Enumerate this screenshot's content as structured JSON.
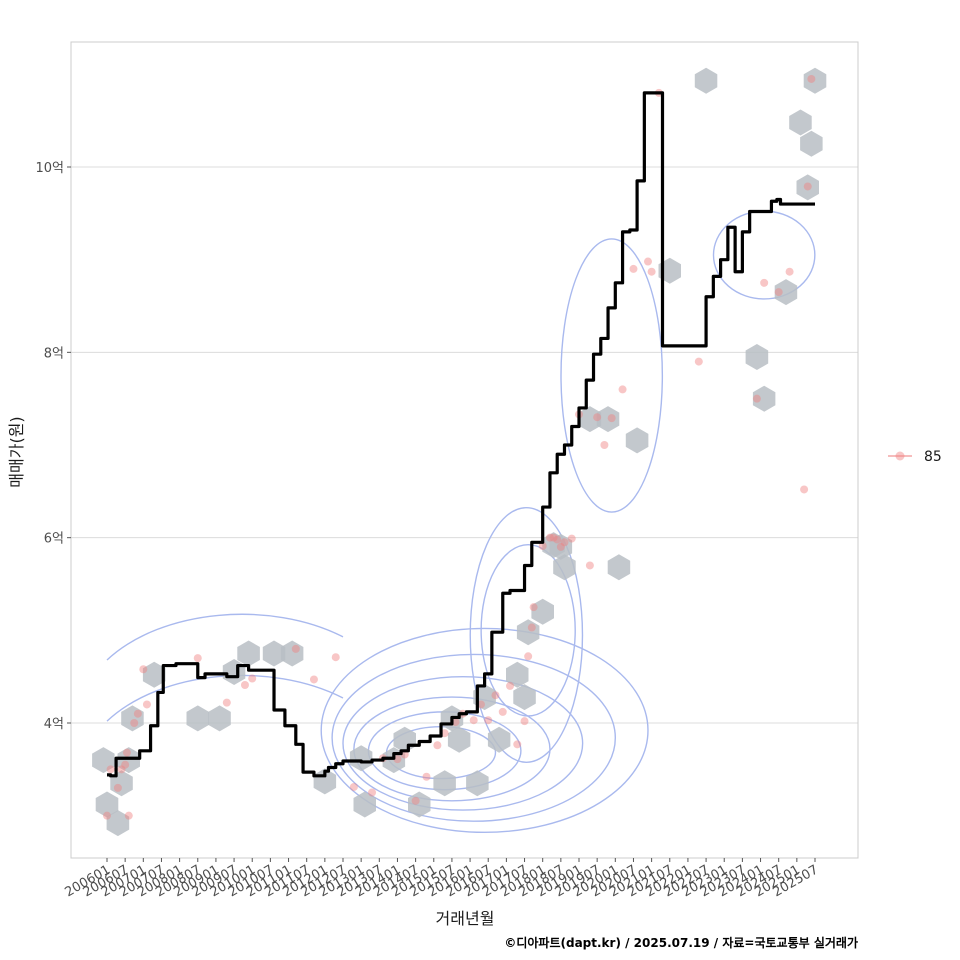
{
  "chart_data": {
    "type": "line",
    "xlabel": "거래년월",
    "ylabel": "매매가(원)",
    "caption": "©디아파트(dapt.kr) / 2025.07.19 / 자료=국토교통부 실거래가",
    "legend": {
      "position": "right",
      "entries": [
        "85"
      ]
    },
    "grid": true,
    "xlim": [
      2005.75,
      2026.9
    ],
    "ylim": [
      2.65,
      11.45
    ],
    "x_ticks": [
      "200601",
      "200607",
      "200701",
      "200707",
      "200801",
      "200807",
      "200901",
      "200907",
      "201001",
      "201007",
      "201101",
      "201107",
      "201201",
      "201207",
      "201301",
      "201307",
      "201401",
      "201407",
      "201501",
      "201507",
      "201601",
      "201607",
      "201701",
      "201707",
      "201801",
      "201807",
      "201901",
      "201907",
      "202001",
      "202007",
      "202101",
      "202107",
      "202201",
      "202207",
      "202301",
      "202307",
      "202401",
      "202407",
      "202501",
      "202507"
    ],
    "y_ticks": [
      {
        "value": 4,
        "label": "4억"
      },
      {
        "value": 6,
        "label": "6억"
      },
      {
        "value": 8,
        "label": "8억"
      },
      {
        "value": 10,
        "label": "10억"
      }
    ],
    "colors": {
      "line": "#000000",
      "points": "#f08080",
      "hexbin": "#b8bec4",
      "hexbin_highlight": "#c9def0",
      "contour": "#a9b9ee",
      "grid": "#dcdcdc",
      "panel_border": "#cccccc"
    },
    "series": [
      {
        "name": "85",
        "kind": "moving_average_line",
        "x": [
          2006.0,
          2006.1,
          2006.25,
          2006.5,
          2006.75,
          2006.9,
          2007.2,
          2007.4,
          2007.55,
          2007.75,
          2007.9,
          2008.1,
          2008.5,
          2008.7,
          2008.9,
          2009.1,
          2009.3,
          2009.6,
          2009.9,
          2010.2,
          2010.4,
          2010.6,
          2010.9,
          2011.2,
          2011.4,
          2011.5,
          2011.7,
          2012.0,
          2012.1,
          2012.3,
          2012.5,
          2012.75,
          2013.0,
          2013.3,
          2013.6,
          2013.9,
          2014.1,
          2014.3,
          2014.6,
          2014.9,
          2015.2,
          2015.5,
          2015.7,
          2015.9,
          2016.2,
          2016.4,
          2016.6,
          2016.9,
          2017.1,
          2017.3,
          2017.5,
          2017.7,
          2018.0,
          2018.2,
          2018.4,
          2018.6,
          2018.8,
          2019.0,
          2019.2,
          2019.4,
          2019.6,
          2019.8,
          2020.0,
          2020.2,
          2020.4,
          2020.6,
          2020.8,
          2021.0,
          2021.3,
          2021.6,
          2021.8,
          2022.1,
          2022.3,
          2022.5,
          2022.7,
          2022.9,
          2023.1,
          2023.3,
          2023.5,
          2023.7,
          2023.9,
          2024.1,
          2024.3,
          2024.45,
          2024.55,
          2024.7,
          2024.9,
          2025.2,
          2025.4,
          2025.5
        ],
        "y": [
          3.44,
          3.43,
          3.62,
          3.62,
          3.62,
          3.7,
          3.97,
          4.33,
          4.62,
          4.62,
          4.64,
          4.64,
          4.49,
          4.53,
          4.53,
          4.53,
          4.5,
          4.62,
          4.57,
          4.57,
          4.57,
          4.14,
          3.97,
          3.77,
          3.47,
          3.47,
          3.43,
          3.48,
          3.52,
          3.56,
          3.59,
          3.59,
          3.58,
          3.6,
          3.62,
          3.67,
          3.7,
          3.76,
          3.8,
          3.86,
          3.99,
          4.06,
          4.1,
          4.12,
          4.4,
          4.53,
          4.98,
          5.4,
          5.43,
          5.43,
          5.7,
          5.95,
          6.33,
          6.7,
          6.9,
          7.0,
          7.2,
          7.4,
          7.7,
          7.98,
          8.15,
          8.48,
          8.75,
          9.3,
          9.32,
          9.85,
          10.8,
          10.8,
          8.07,
          8.07,
          8.07,
          8.07,
          8.07,
          8.6,
          8.82,
          9.0,
          9.35,
          8.87,
          9.3,
          9.52,
          9.52,
          9.52,
          9.63,
          9.65,
          9.6,
          9.6,
          9.6,
          9.6,
          9.6,
          9.6
        ]
      },
      {
        "name": "85",
        "kind": "transactions",
        "x": [
          2006.0,
          2006.1,
          2006.3,
          2006.4,
          2006.5,
          2006.55,
          2006.6,
          2006.75,
          2006.85,
          2007.0,
          2007.1,
          2008.5,
          2009.3,
          2009.8,
          2010.0,
          2011.2,
          2011.7,
          2012.3,
          2012.8,
          2013.3,
          2013.6,
          2014.0,
          2014.2,
          2014.5,
          2014.8,
          2015.1,
          2015.3,
          2015.6,
          2015.8,
          2016.1,
          2016.3,
          2016.5,
          2016.7,
          2016.9,
          2017.1,
          2017.3,
          2017.5,
          2017.6,
          2017.7,
          2017.75,
          2018.0,
          2018.2,
          2018.3,
          2018.4,
          2018.5,
          2018.6,
          2018.8,
          2019.0,
          2019.3,
          2019.5,
          2019.7,
          2019.9,
          2020.2,
          2020.5,
          2020.9,
          2021.0,
          2021.2,
          2022.3,
          2023.9,
          2024.1,
          2024.5,
          2024.8,
          2025.2,
          2025.3,
          2025.4
        ],
        "y": [
          3.0,
          3.5,
          3.3,
          3.5,
          3.55,
          3.68,
          3.0,
          4.0,
          4.1,
          4.58,
          4.2,
          4.7,
          4.22,
          4.41,
          4.48,
          4.8,
          4.47,
          4.71,
          3.31,
          3.25,
          3.62,
          3.61,
          3.66,
          3.16,
          3.42,
          3.76,
          3.89,
          4.01,
          4.1,
          4.03,
          4.2,
          4.03,
          4.3,
          4.12,
          4.4,
          3.77,
          4.02,
          4.72,
          5.03,
          5.25,
          5.91,
          6.0,
          6.0,
          5.98,
          5.9,
          5.95,
          5.99,
          7.33,
          5.7,
          7.3,
          7.0,
          7.29,
          7.6,
          8.9,
          8.98,
          8.87,
          10.8,
          7.9,
          7.5,
          8.75,
          8.65,
          8.87,
          6.52,
          9.79,
          10.95
        ]
      }
    ],
    "hexbin_centers": {
      "x": [
        2005.9,
        2006.0,
        2006.3,
        2006.4,
        2006.6,
        2006.7,
        2007.3,
        2008.5,
        2009.1,
        2009.5,
        2009.9,
        2010.6,
        2011.1,
        2012.0,
        2013.0,
        2013.1,
        2013.9,
        2014.2,
        2014.6,
        2015.3,
        2015.5,
        2015.7,
        2016.2,
        2016.4,
        2016.8,
        2017.3,
        2017.5,
        2017.6,
        2018.0,
        2018.3,
        2018.5,
        2018.6,
        2019.3,
        2019.8,
        2020.1,
        2020.6,
        2021.5,
        2022.5,
        2023.9,
        2024.1,
        2024.7,
        2025.1,
        2025.3,
        2025.4,
        2025.5
      ],
      "y": [
        3.6,
        3.12,
        2.92,
        3.35,
        3.6,
        4.05,
        4.52,
        4.05,
        4.05,
        4.55,
        4.75,
        4.75,
        4.75,
        3.37,
        3.62,
        3.12,
        3.6,
        3.82,
        3.12,
        3.35,
        4.05,
        3.82,
        3.35,
        4.28,
        3.82,
        4.52,
        4.28,
        4.98,
        5.2,
        5.92,
        5.9,
        5.68,
        7.28,
        7.28,
        5.68,
        7.05,
        8.88,
        10.93,
        7.95,
        7.5,
        8.65,
        10.48,
        9.78,
        10.25,
        10.93
      ]
    },
    "legend_symbol": "point"
  }
}
